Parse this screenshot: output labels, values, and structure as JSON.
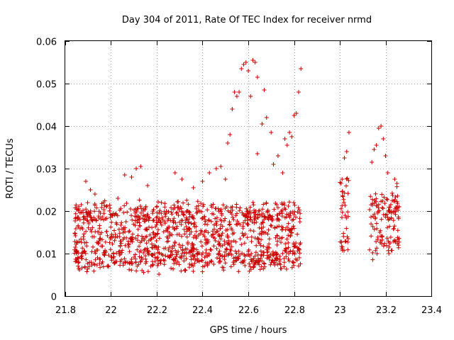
{
  "chart_data": {
    "type": "scatter",
    "title": "Day 304 of 2011, Rate Of TEC Index for receiver nrmd",
    "xlabel": "GPS time / hours",
    "ylabel": "ROTI / TECUs",
    "xlim": [
      21.8,
      23.4
    ],
    "ylim": [
      0,
      0.06
    ],
    "grid": true,
    "marker": "plus",
    "color": "#cc0000",
    "x_ticks": [
      "21.8",
      "22",
      "22.2",
      "22.4",
      "22.6",
      "22.8",
      "23",
      "23.2",
      "23.4"
    ],
    "y_ticks": [
      "0",
      "0.01",
      "0.02",
      "0.03",
      "0.04",
      "0.05",
      "0.06"
    ],
    "series": [
      {
        "name": "ROTI",
        "bands": [
          {
            "x_start": 21.84,
            "x_end": 22.83,
            "count": 1250,
            "low": 0.006,
            "high": 0.022
          },
          {
            "x_start": 23.0,
            "x_end": 23.04,
            "count": 40,
            "low": 0.01,
            "high": 0.028
          },
          {
            "x_start": 23.13,
            "x_end": 23.26,
            "count": 130,
            "low": 0.009,
            "high": 0.025
          }
        ],
        "points": [
          [
            21.87,
            0.0215
          ],
          [
            21.89,
            0.027
          ],
          [
            21.91,
            0.025
          ],
          [
            21.93,
            0.024
          ],
          [
            22.03,
            0.023
          ],
          [
            22.06,
            0.0285
          ],
          [
            22.09,
            0.028
          ],
          [
            22.11,
            0.03
          ],
          [
            22.13,
            0.0305
          ],
          [
            22.16,
            0.026
          ],
          [
            22.28,
            0.029
          ],
          [
            22.31,
            0.0275
          ],
          [
            22.36,
            0.0255
          ],
          [
            22.4,
            0.027
          ],
          [
            22.43,
            0.029
          ],
          [
            22.46,
            0.03
          ],
          [
            22.48,
            0.0305
          ],
          [
            22.5,
            0.0275
          ],
          [
            22.51,
            0.036
          ],
          [
            22.52,
            0.038
          ],
          [
            22.53,
            0.044
          ],
          [
            22.54,
            0.048
          ],
          [
            22.55,
            0.047
          ],
          [
            22.56,
            0.048
          ],
          [
            22.57,
            0.0535
          ],
          [
            22.58,
            0.0545
          ],
          [
            22.59,
            0.055
          ],
          [
            22.6,
            0.053
          ],
          [
            22.61,
            0.047
          ],
          [
            22.62,
            0.0555
          ],
          [
            22.63,
            0.055
          ],
          [
            22.64,
            0.0515
          ],
          [
            22.64,
            0.0335
          ],
          [
            22.66,
            0.0405
          ],
          [
            22.67,
            0.0485
          ],
          [
            22.68,
            0.042
          ],
          [
            22.7,
            0.0385
          ],
          [
            22.71,
            0.031
          ],
          [
            22.73,
            0.033
          ],
          [
            22.75,
            0.029
          ],
          [
            22.76,
            0.037
          ],
          [
            22.77,
            0.0355
          ],
          [
            22.78,
            0.0385
          ],
          [
            22.79,
            0.0375
          ],
          [
            22.8,
            0.0425
          ],
          [
            22.81,
            0.043
          ],
          [
            22.82,
            0.048
          ],
          [
            22.83,
            0.0535
          ],
          [
            23.01,
            0.0275
          ],
          [
            23.02,
            0.0325
          ],
          [
            23.03,
            0.034
          ],
          [
            23.04,
            0.0385
          ],
          [
            23.14,
            0.0315
          ],
          [
            23.15,
            0.0345
          ],
          [
            23.16,
            0.0355
          ],
          [
            23.17,
            0.0395
          ],
          [
            23.18,
            0.04
          ],
          [
            23.19,
            0.037
          ],
          [
            23.2,
            0.033
          ],
          [
            23.21,
            0.029
          ],
          [
            23.24,
            0.0275
          ],
          [
            23.25,
            0.0265
          ]
        ]
      }
    ]
  }
}
